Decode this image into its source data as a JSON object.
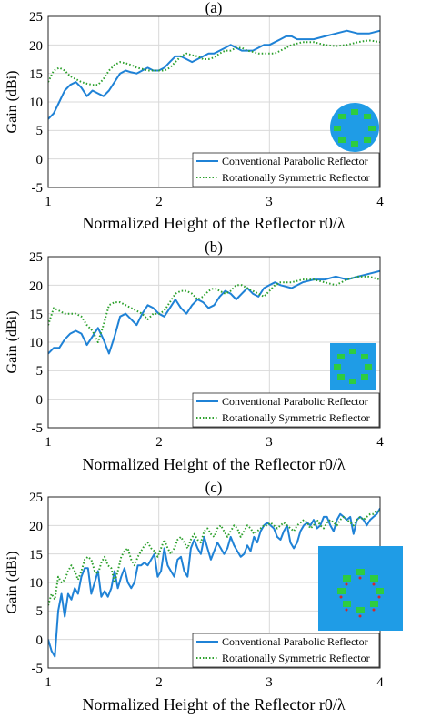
{
  "chart_data": [
    {
      "type": "line",
      "title": "(a)",
      "xlabel": "Normalized Height of the Reflector r0/λ",
      "ylabel": "Gain (dBi)",
      "xlim": [
        1,
        4
      ],
      "ylim": [
        -5,
        25
      ],
      "xticks": [
        "1",
        "2",
        "3",
        "4"
      ],
      "yticks": [
        "-5",
        "0",
        "5",
        "10",
        "15",
        "20",
        "25"
      ],
      "grid": true,
      "legend_position": "bottom-right",
      "inset_icon": "circular-reflector-icon",
      "series": [
        {
          "name": "Conventional Parabolic Reflector",
          "color": "#1f82d6",
          "style": "solid",
          "x": [
            1.0,
            1.05,
            1.1,
            1.15,
            1.2,
            1.25,
            1.3,
            1.35,
            1.4,
            1.45,
            1.5,
            1.55,
            1.6,
            1.65,
            1.7,
            1.75,
            1.8,
            1.85,
            1.9,
            1.95,
            2.0,
            2.05,
            2.1,
            2.15,
            2.2,
            2.25,
            2.3,
            2.35,
            2.4,
            2.45,
            2.5,
            2.55,
            2.6,
            2.65,
            2.7,
            2.75,
            2.8,
            2.85,
            2.9,
            2.95,
            3.0,
            3.05,
            3.1,
            3.15,
            3.2,
            3.25,
            3.3,
            3.4,
            3.5,
            3.6,
            3.7,
            3.8,
            3.9,
            4.0
          ],
          "y": [
            7,
            8,
            10,
            12,
            13,
            13.5,
            12.5,
            11,
            12,
            11.5,
            11,
            12,
            13.5,
            15,
            15.5,
            15.2,
            15,
            15.5,
            16,
            15.5,
            15.5,
            16,
            17,
            18,
            18,
            17.5,
            17,
            17.5,
            18,
            18.5,
            18.5,
            19,
            19.5,
            20,
            19.5,
            19,
            19,
            19,
            19.5,
            20,
            20,
            20.5,
            21,
            21.5,
            21.5,
            21,
            21,
            21,
            21.5,
            22,
            22.5,
            22,
            22,
            22.5
          ]
        },
        {
          "name": "Rotationally Symmetric Reflector",
          "color": "#2ca02c",
          "style": "dotted",
          "x": [
            1.0,
            1.05,
            1.1,
            1.15,
            1.2,
            1.25,
            1.3,
            1.35,
            1.4,
            1.45,
            1.5,
            1.55,
            1.6,
            1.65,
            1.7,
            1.75,
            1.8,
            1.85,
            1.9,
            1.95,
            2.0,
            2.05,
            2.1,
            2.15,
            2.2,
            2.25,
            2.3,
            2.35,
            2.4,
            2.45,
            2.5,
            2.55,
            2.6,
            2.65,
            2.7,
            2.75,
            2.8,
            2.85,
            2.9,
            2.95,
            3.0,
            3.05,
            3.1,
            3.15,
            3.2,
            3.3,
            3.4,
            3.5,
            3.6,
            3.7,
            3.8,
            3.9,
            4.0
          ],
          "y": [
            13.5,
            15.5,
            16,
            15.5,
            14.5,
            14,
            13.5,
            13.2,
            13,
            13,
            14,
            15.5,
            16.5,
            17,
            16.8,
            16.5,
            16,
            15.8,
            15.5,
            15.5,
            15.5,
            15.5,
            16,
            17,
            18,
            18.5,
            18.2,
            18,
            17.5,
            17.5,
            17.8,
            18.5,
            19,
            19,
            19.5,
            19.5,
            19,
            18.8,
            18.5,
            18.5,
            18.5,
            18.5,
            19,
            19.5,
            20,
            20.5,
            20.5,
            20,
            19.8,
            20,
            20.5,
            20.8,
            20.5
          ]
        }
      ]
    },
    {
      "type": "line",
      "title": "(b)",
      "xlabel": "Normalized Height of the Reflector r0/λ",
      "ylabel": "Gain (dBi)",
      "xlim": [
        1,
        4
      ],
      "ylim": [
        -5,
        25
      ],
      "xticks": [
        "1",
        "2",
        "3",
        "4"
      ],
      "yticks": [
        "-5",
        "0",
        "5",
        "10",
        "15",
        "20",
        "25"
      ],
      "grid": true,
      "legend_position": "bottom-right",
      "inset_icon": "square-reflector-icon",
      "series": [
        {
          "name": "Conventional Parabolic Reflector",
          "color": "#1f82d6",
          "style": "solid",
          "x": [
            1.0,
            1.05,
            1.1,
            1.15,
            1.2,
            1.25,
            1.3,
            1.35,
            1.4,
            1.45,
            1.5,
            1.55,
            1.6,
            1.65,
            1.7,
            1.75,
            1.8,
            1.85,
            1.9,
            1.95,
            2.0,
            2.05,
            2.1,
            2.15,
            2.2,
            2.25,
            2.3,
            2.35,
            2.4,
            2.45,
            2.5,
            2.55,
            2.6,
            2.65,
            2.7,
            2.75,
            2.8,
            2.85,
            2.9,
            2.95,
            3.0,
            3.05,
            3.1,
            3.2,
            3.3,
            3.4,
            3.5,
            3.6,
            3.7,
            3.8,
            3.9,
            4.0
          ],
          "y": [
            8,
            9,
            9,
            10.5,
            11.5,
            12,
            11.5,
            9.5,
            11,
            12.5,
            10.5,
            8,
            11,
            14.5,
            15,
            14,
            13,
            15,
            16.5,
            16,
            15,
            14.5,
            16,
            17.5,
            16,
            15,
            16.5,
            17.5,
            17,
            16,
            16.5,
            18,
            19,
            18.5,
            17.5,
            18.5,
            19.5,
            18.5,
            18,
            19.5,
            20,
            20.5,
            20,
            19.5,
            20.5,
            21,
            21,
            21.5,
            21,
            21.5,
            22,
            22.5
          ]
        },
        {
          "name": "Rotationally Symmetric Reflector",
          "color": "#2ca02c",
          "style": "dotted",
          "x": [
            1.0,
            1.05,
            1.1,
            1.15,
            1.2,
            1.25,
            1.3,
            1.35,
            1.4,
            1.45,
            1.5,
            1.55,
            1.6,
            1.65,
            1.7,
            1.75,
            1.8,
            1.85,
            1.9,
            1.95,
            2.0,
            2.05,
            2.1,
            2.15,
            2.2,
            2.25,
            2.3,
            2.35,
            2.4,
            2.45,
            2.5,
            2.55,
            2.6,
            2.65,
            2.7,
            2.75,
            2.8,
            2.85,
            2.9,
            2.95,
            3.0,
            3.05,
            3.1,
            3.2,
            3.3,
            3.4,
            3.5,
            3.6,
            3.7,
            3.8,
            3.9,
            4.0
          ],
          "y": [
            13,
            16,
            15.5,
            15,
            15,
            15,
            14.5,
            13,
            12,
            10,
            13,
            16.5,
            17,
            17,
            16.5,
            16,
            15.5,
            15,
            14,
            15,
            15,
            15.5,
            17,
            18.5,
            19,
            19,
            18.5,
            17.5,
            18,
            19,
            19.5,
            19,
            18.5,
            19,
            20,
            20,
            19.5,
            19,
            18.5,
            18,
            19,
            20,
            20.5,
            20.5,
            21,
            21,
            20.5,
            20,
            21,
            21.5,
            21.5,
            21
          ]
        }
      ]
    },
    {
      "type": "line",
      "title": "(c)",
      "xlabel": "Normalized Height of the Reflector r0/λ",
      "ylabel": "Gain (dBi)",
      "xlim": [
        1,
        4
      ],
      "ylim": [
        -5,
        25
      ],
      "xticks": [
        "1",
        "2",
        "3",
        "4"
      ],
      "yticks": [
        "-5",
        "0",
        "5",
        "10",
        "15",
        "20",
        "25"
      ],
      "grid": true,
      "legend_position": "bottom-right",
      "inset_icon": "square-array-icon",
      "series": [
        {
          "name": "Conventional Parabolic Reflector",
          "color": "#1f82d6",
          "style": "solid",
          "x": [
            1.0,
            1.03,
            1.06,
            1.09,
            1.12,
            1.15,
            1.18,
            1.21,
            1.24,
            1.27,
            1.3,
            1.33,
            1.36,
            1.39,
            1.42,
            1.45,
            1.48,
            1.51,
            1.54,
            1.57,
            1.6,
            1.63,
            1.66,
            1.69,
            1.72,
            1.75,
            1.78,
            1.81,
            1.84,
            1.87,
            1.9,
            1.93,
            1.96,
            1.99,
            2.02,
            2.05,
            2.08,
            2.11,
            2.14,
            2.17,
            2.2,
            2.23,
            2.26,
            2.29,
            2.32,
            2.35,
            2.38,
            2.41,
            2.44,
            2.47,
            2.5,
            2.53,
            2.56,
            2.59,
            2.62,
            2.65,
            2.68,
            2.71,
            2.74,
            2.77,
            2.8,
            2.83,
            2.86,
            2.89,
            2.92,
            2.95,
            2.98,
            3.01,
            3.04,
            3.07,
            3.1,
            3.13,
            3.16,
            3.19,
            3.22,
            3.25,
            3.28,
            3.31,
            3.34,
            3.37,
            3.4,
            3.43,
            3.46,
            3.49,
            3.52,
            3.55,
            3.58,
            3.61,
            3.64,
            3.67,
            3.7,
            3.73,
            3.76,
            3.79,
            3.82,
            3.85,
            3.88,
            3.91,
            3.94,
            3.97,
            4.0
          ],
          "y": [
            0,
            -2,
            -3,
            5,
            8,
            4,
            8,
            7,
            9,
            8,
            11,
            12.5,
            12.5,
            8,
            10,
            12,
            7.5,
            8.5,
            7.5,
            9,
            12,
            9,
            11,
            12.5,
            10,
            9,
            10,
            13,
            13,
            13.5,
            13,
            14,
            15,
            11,
            12,
            16,
            13,
            12,
            11,
            14,
            14.5,
            12,
            11,
            16,
            17.5,
            16,
            15,
            18,
            16,
            14,
            15.5,
            17,
            16,
            15,
            16,
            18,
            16.5,
            15.5,
            14.5,
            15,
            16.5,
            15.5,
            18,
            17,
            19,
            20,
            20.5,
            20,
            19.5,
            18,
            17.5,
            19,
            20,
            17,
            16,
            17,
            19,
            20,
            20.5,
            20,
            21,
            19.5,
            20,
            21.5,
            21.5,
            20,
            19,
            21,
            22,
            21.5,
            21,
            21.5,
            18.5,
            21,
            21.5,
            21,
            20,
            21,
            21.5,
            22,
            23
          ]
        },
        {
          "name": "Rotationally Symmetric Reflector",
          "color": "#2ca02c",
          "style": "dotted",
          "x": [
            1.0,
            1.03,
            1.06,
            1.09,
            1.12,
            1.15,
            1.18,
            1.21,
            1.24,
            1.27,
            1.3,
            1.33,
            1.36,
            1.39,
            1.42,
            1.45,
            1.48,
            1.51,
            1.54,
            1.57,
            1.6,
            1.63,
            1.66,
            1.69,
            1.72,
            1.75,
            1.78,
            1.81,
            1.84,
            1.87,
            1.9,
            1.93,
            1.96,
            1.99,
            2.02,
            2.05,
            2.08,
            2.11,
            2.14,
            2.17,
            2.2,
            2.23,
            2.26,
            2.29,
            2.32,
            2.35,
            2.38,
            2.41,
            2.44,
            2.47,
            2.5,
            2.53,
            2.56,
            2.59,
            2.62,
            2.65,
            2.68,
            2.71,
            2.74,
            2.77,
            2.8,
            2.83,
            2.86,
            2.89,
            2.92,
            2.95,
            2.98,
            3.01,
            3.04,
            3.07,
            3.1,
            3.13,
            3.16,
            3.19,
            3.22,
            3.25,
            3.28,
            3.31,
            3.34,
            3.37,
            3.4,
            3.43,
            3.46,
            3.49,
            3.52,
            3.55,
            3.58,
            3.61,
            3.64,
            3.67,
            3.7,
            3.73,
            3.76,
            3.79,
            3.82,
            3.85,
            3.88,
            3.91,
            3.94,
            3.97,
            4.0
          ],
          "y": [
            6,
            8,
            7,
            11,
            10,
            10.5,
            12,
            13,
            12,
            10.5,
            12,
            14,
            14.5,
            14,
            12,
            11.5,
            13.5,
            14.5,
            13,
            12.5,
            10,
            12,
            14.5,
            15.5,
            16,
            14,
            13,
            14.5,
            15.5,
            16.5,
            17,
            16,
            15.5,
            14.5,
            16,
            17.5,
            16,
            15,
            16,
            17.5,
            18,
            17,
            16,
            17.5,
            18.5,
            17.5,
            17,
            19,
            19.5,
            18.5,
            18,
            19.5,
            20,
            19,
            18,
            19,
            20,
            19.5,
            18,
            19,
            20,
            19.5,
            18.5,
            19,
            19.5,
            20,
            20,
            20.5,
            20,
            19.5,
            20,
            20.5,
            20,
            19.5,
            19,
            20,
            20.5,
            21,
            20.5,
            19.5,
            20,
            21,
            20,
            19.5,
            20.5,
            21,
            20.5,
            20,
            21,
            21.5,
            21,
            20.5,
            20,
            21,
            21.5,
            21,
            21.5,
            22,
            22,
            22.5,
            22.5
          ]
        }
      ]
    }
  ]
}
